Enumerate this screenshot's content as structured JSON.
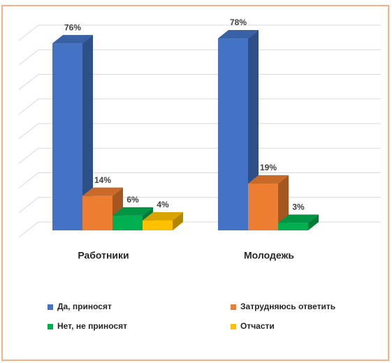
{
  "chart_data": {
    "type": "bar3d",
    "categories": [
      "Работники",
      "Молодежь"
    ],
    "series": [
      {
        "name": "Да, приносят",
        "color": "#4472c4",
        "values": [
          76,
          78
        ],
        "value_labels": [
          "76%",
          "78%"
        ]
      },
      {
        "name": "Затрудняюсь ответить",
        "color": "#ed7d31",
        "values": [
          14,
          19
        ],
        "value_labels": [
          "14%",
          "19%"
        ]
      },
      {
        "name": "Нет, не приносят",
        "color": "#00b050",
        "values": [
          6,
          3
        ],
        "value_labels": [
          "6%",
          "3%"
        ]
      },
      {
        "name": "Отчасти",
        "color": "#ffc000",
        "values": [
          4,
          null
        ],
        "value_labels": [
          "4%",
          null
        ]
      }
    ],
    "ylim": [
      0,
      80
    ],
    "yticks": [
      0,
      10,
      20,
      30,
      40,
      50,
      60,
      70,
      80
    ],
    "grid": true,
    "legend": "bottom"
  }
}
